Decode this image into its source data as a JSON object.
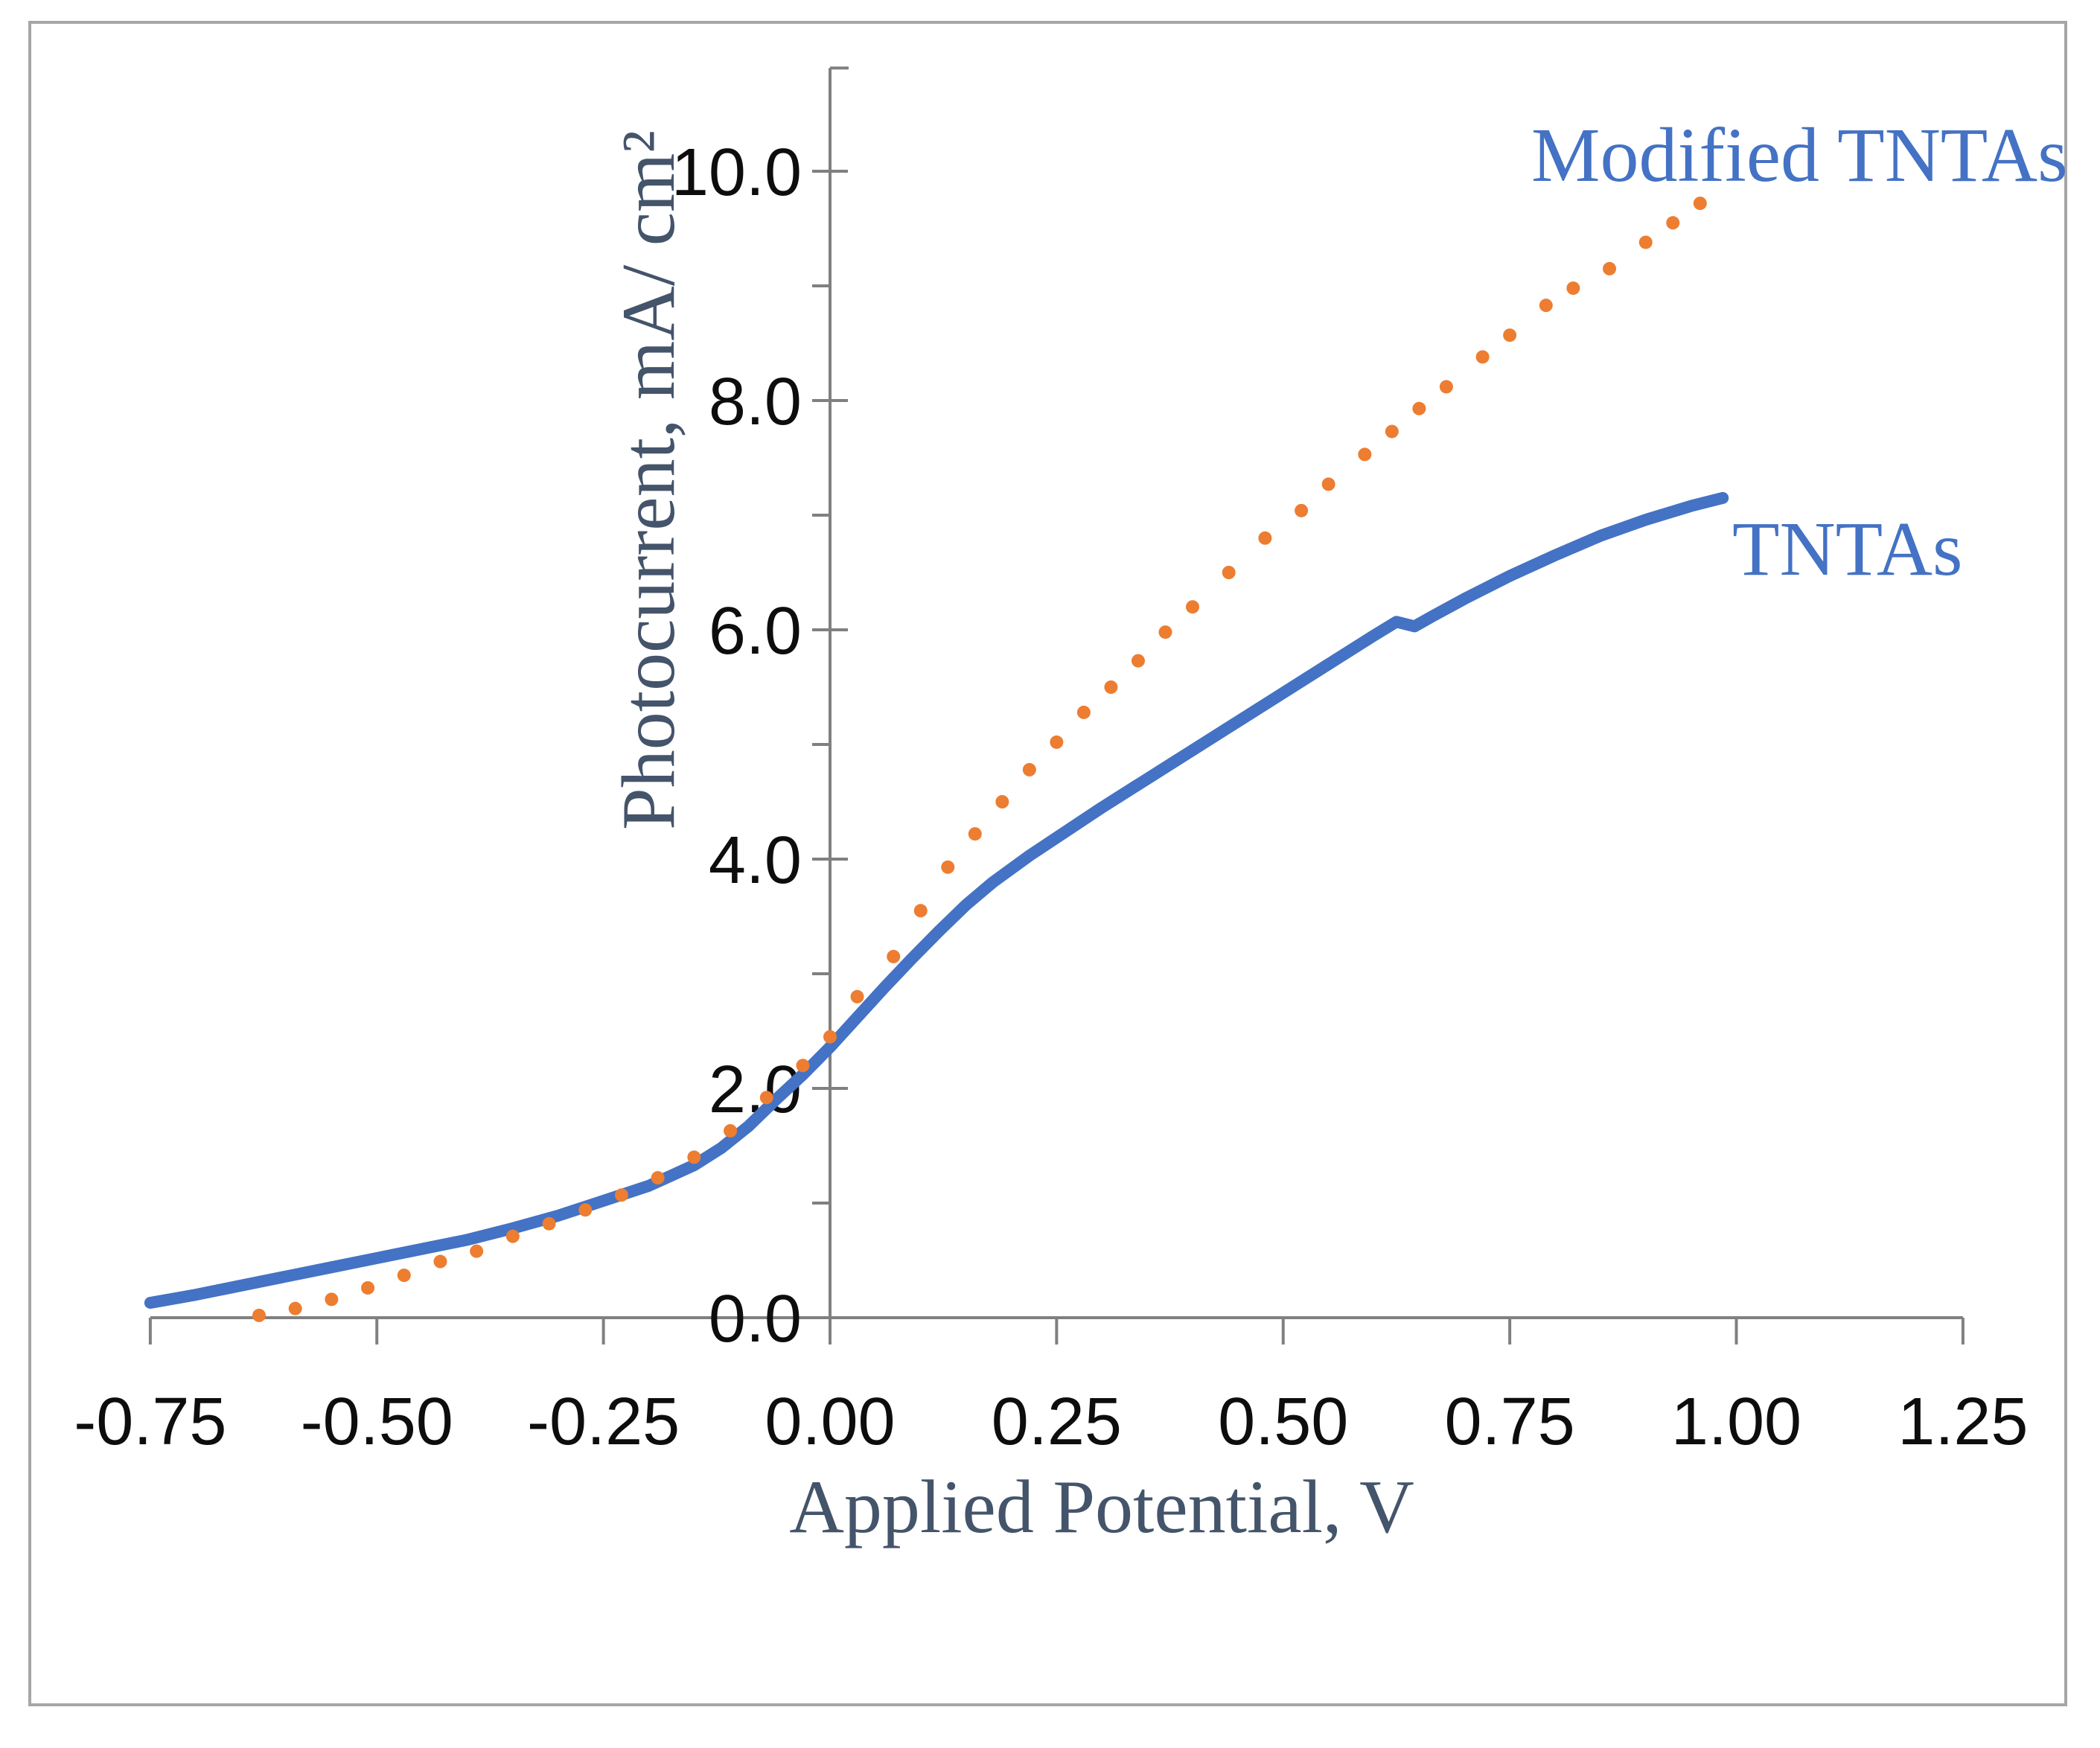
{
  "chart_data": {
    "type": "line",
    "title": "",
    "xlabel": "Applied Potential, V",
    "ylabel": "Photocurrent, mA/ cm²",
    "grid": false,
    "legend_position": "inline-annotations",
    "x_axis": {
      "range": [
        -0.75,
        1.25
      ],
      "ticks": [
        {
          "v": -0.75,
          "label": "-0.75"
        },
        {
          "v": -0.5,
          "label": "-0.50"
        },
        {
          "v": -0.25,
          "label": "-0.25"
        },
        {
          "v": 0.0,
          "label": "0.00"
        },
        {
          "v": 0.25,
          "label": "0.25"
        },
        {
          "v": 0.5,
          "label": "0.50"
        },
        {
          "v": 0.75,
          "label": "0.75"
        },
        {
          "v": 1.0,
          "label": "1.00"
        },
        {
          "v": 1.25,
          "label": "1.25"
        }
      ]
    },
    "y_axis": {
      "range": [
        0,
        10.9
      ],
      "major_ticks": [
        {
          "v": 0,
          "label": "0.0"
        },
        {
          "v": 2,
          "label": "2.0"
        },
        {
          "v": 4,
          "label": "4.0"
        },
        {
          "v": 6,
          "label": "6.0"
        },
        {
          "v": 8,
          "label": "8.0"
        },
        {
          "v": 10,
          "label": "10.0"
        }
      ],
      "minor_tick_values": [
        1,
        3,
        5,
        7,
        9
      ]
    },
    "series": [
      {
        "name": "tntas",
        "label": "TNTAs",
        "color": "#4472C4",
        "style": "solid-line",
        "line_width": 16,
        "points": [
          [
            -0.75,
            0.13
          ],
          [
            -0.7,
            0.2
          ],
          [
            -0.65,
            0.28
          ],
          [
            -0.6,
            0.36
          ],
          [
            -0.55,
            0.44
          ],
          [
            -0.5,
            0.52
          ],
          [
            -0.45,
            0.6
          ],
          [
            -0.4,
            0.68
          ],
          [
            -0.35,
            0.78
          ],
          [
            -0.3,
            0.89
          ],
          [
            -0.25,
            1.02
          ],
          [
            -0.2,
            1.15
          ],
          [
            -0.15,
            1.33
          ],
          [
            -0.12,
            1.48
          ],
          [
            -0.09,
            1.67
          ],
          [
            -0.06,
            1.9
          ],
          [
            -0.03,
            2.12
          ],
          [
            0.0,
            2.36
          ],
          [
            0.03,
            2.62
          ],
          [
            0.06,
            2.88
          ],
          [
            0.09,
            3.13
          ],
          [
            0.12,
            3.37
          ],
          [
            0.15,
            3.6
          ],
          [
            0.18,
            3.8
          ],
          [
            0.22,
            4.03
          ],
          [
            0.26,
            4.24
          ],
          [
            0.3,
            4.45
          ],
          [
            0.35,
            4.7
          ],
          [
            0.4,
            4.95
          ],
          [
            0.45,
            5.2
          ],
          [
            0.5,
            5.45
          ],
          [
            0.55,
            5.7
          ],
          [
            0.6,
            5.95
          ],
          [
            0.625,
            6.07
          ],
          [
            0.645,
            6.03
          ],
          [
            0.665,
            6.12
          ],
          [
            0.7,
            6.27
          ],
          [
            0.75,
            6.47
          ],
          [
            0.8,
            6.65
          ],
          [
            0.85,
            6.82
          ],
          [
            0.9,
            6.96
          ],
          [
            0.95,
            7.08
          ],
          [
            0.985,
            7.15
          ]
        ]
      },
      {
        "name": "modified-tntas",
        "label": "Modified TNTAs",
        "color": "#ED7D31",
        "style": "dot-markers",
        "marker_radius": 9,
        "points": [
          [
            -0.63,
            0.02
          ],
          [
            -0.59,
            0.08
          ],
          [
            -0.55,
            0.16
          ],
          [
            -0.51,
            0.26
          ],
          [
            -0.47,
            0.37
          ],
          [
            -0.43,
            0.49
          ],
          [
            -0.39,
            0.58
          ],
          [
            -0.35,
            0.71
          ],
          [
            -0.31,
            0.82
          ],
          [
            -0.27,
            0.94
          ],
          [
            -0.23,
            1.07
          ],
          [
            -0.19,
            1.22
          ],
          [
            -0.15,
            1.4
          ],
          [
            -0.11,
            1.63
          ],
          [
            -0.07,
            1.92
          ],
          [
            -0.03,
            2.2
          ],
          [
            0.0,
            2.45
          ],
          [
            0.03,
            2.8
          ],
          [
            0.07,
            3.15
          ],
          [
            0.1,
            3.55
          ],
          [
            0.13,
            3.93
          ],
          [
            0.16,
            4.22
          ],
          [
            0.19,
            4.5
          ],
          [
            0.22,
            4.78
          ],
          [
            0.25,
            5.02
          ],
          [
            0.28,
            5.28
          ],
          [
            0.31,
            5.5
          ],
          [
            0.34,
            5.73
          ],
          [
            0.37,
            5.98
          ],
          [
            0.4,
            6.2
          ],
          [
            0.44,
            6.5
          ],
          [
            0.48,
            6.8
          ],
          [
            0.52,
            7.04
          ],
          [
            0.55,
            7.27
          ],
          [
            0.59,
            7.53
          ],
          [
            0.62,
            7.73
          ],
          [
            0.65,
            7.93
          ],
          [
            0.68,
            8.12
          ],
          [
            0.72,
            8.38
          ],
          [
            0.75,
            8.57
          ],
          [
            0.79,
            8.83
          ],
          [
            0.82,
            8.98
          ],
          [
            0.86,
            9.15
          ],
          [
            0.9,
            9.38
          ],
          [
            0.93,
            9.55
          ],
          [
            0.96,
            9.72
          ]
        ]
      }
    ],
    "annotations": [
      {
        "text": "Modified TNTAs",
        "series": "modified-tntas"
      },
      {
        "text": "TNTAs",
        "series": "tntas"
      }
    ]
  },
  "colors": {
    "axis_line": "#808080",
    "outer_border": "#A6A6A6",
    "tick_text": "#0d0d0d",
    "axis_title_text": "#44546A",
    "annotation_text": "#4472C4",
    "background": "#ffffff"
  }
}
